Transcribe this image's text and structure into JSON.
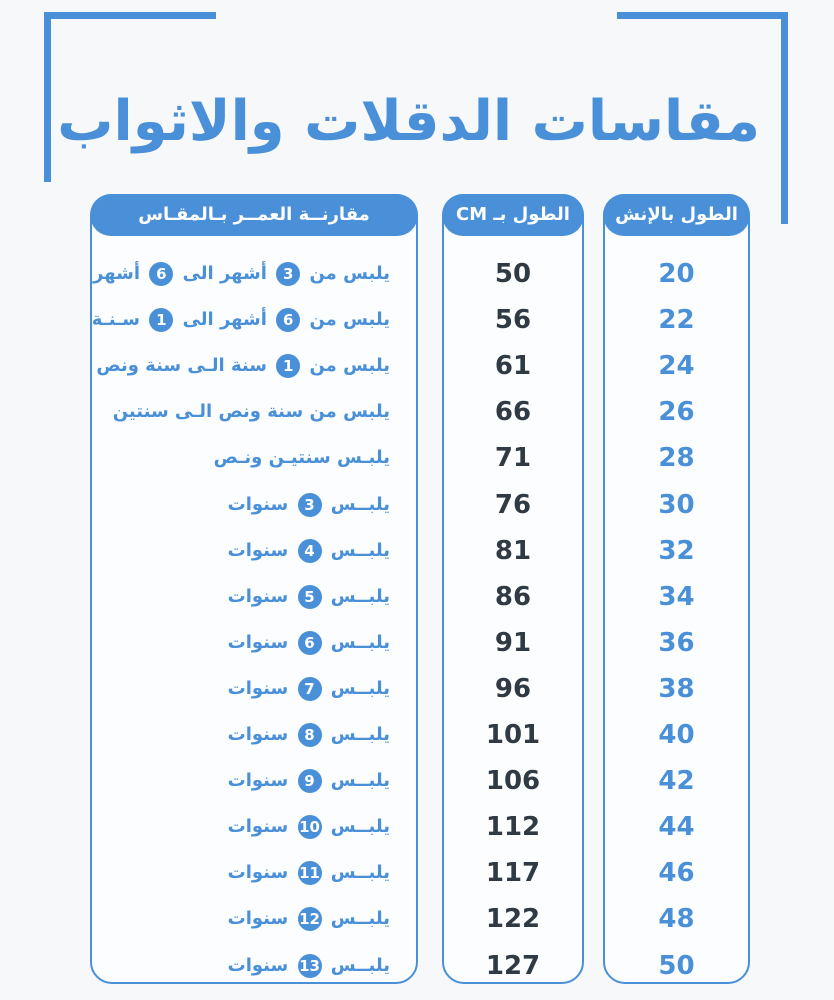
{
  "title": "مقاسات الدقلات والاثواب",
  "headers": {
    "inch": "الطول بالإنش",
    "cm": "الطول بـ CM",
    "age": "مقارنــة العمــر بـالمقـاس"
  },
  "inch": [
    "20",
    "22",
    "24",
    "26",
    "28",
    "30",
    "32",
    "34",
    "36",
    "38",
    "40",
    "42",
    "44",
    "46",
    "48",
    "50"
  ],
  "cm": [
    "50",
    "56",
    "61",
    "66",
    "71",
    "76",
    "81",
    "86",
    "91",
    "96",
    "101",
    "106",
    "112",
    "117",
    "122",
    "127"
  ],
  "age": [
    {
      "a": "يلبس من",
      "n1": "3",
      "b": "أشهر الى",
      "n2": "6",
      "c": "أشهر"
    },
    {
      "a": "يلبس من",
      "n1": "6",
      "b": "أشهر الى",
      "n2": "1",
      "c": "سـنـة"
    },
    {
      "a": "يلبس من",
      "n1": "1",
      "b": "سنة الـى سنة ونص",
      "n2": "",
      "c": ""
    },
    {
      "a": "يلبس من سنة ونص الـى  سنتين",
      "n1": "",
      "b": "",
      "n2": "",
      "c": ""
    },
    {
      "a": "يلبـس سنتيـن ونـص",
      "n1": "",
      "b": "",
      "n2": "",
      "c": ""
    },
    {
      "a": "يلبــس",
      "n1": "3",
      "b": "سنوات",
      "n2": "",
      "c": ""
    },
    {
      "a": "يلبــس",
      "n1": "4",
      "b": "سنوات",
      "n2": "",
      "c": ""
    },
    {
      "a": "يلبــس",
      "n1": "5",
      "b": "سنوات",
      "n2": "",
      "c": ""
    },
    {
      "a": "يلبــس",
      "n1": "6",
      "b": "سنوات",
      "n2": "",
      "c": ""
    },
    {
      "a": "يلبــس",
      "n1": "7",
      "b": "سنوات",
      "n2": "",
      "c": ""
    },
    {
      "a": "يلبــس",
      "n1": "8",
      "b": "سنوات",
      "n2": "",
      "c": ""
    },
    {
      "a": "يلبــس",
      "n1": "9",
      "b": "سنوات",
      "n2": "",
      "c": ""
    },
    {
      "a": "يلبــس",
      "n1": "10",
      "b": "سنوات",
      "n2": "",
      "c": ""
    },
    {
      "a": "يلبــس",
      "n1": "11",
      "b": "سنوات",
      "n2": "",
      "c": ""
    },
    {
      "a": "يلبــس",
      "n1": "12",
      "b": "سنوات",
      "n2": "",
      "c": ""
    },
    {
      "a": "يلبــس",
      "n1": "13",
      "b": "سنوات",
      "n2": "",
      "c": ""
    }
  ]
}
